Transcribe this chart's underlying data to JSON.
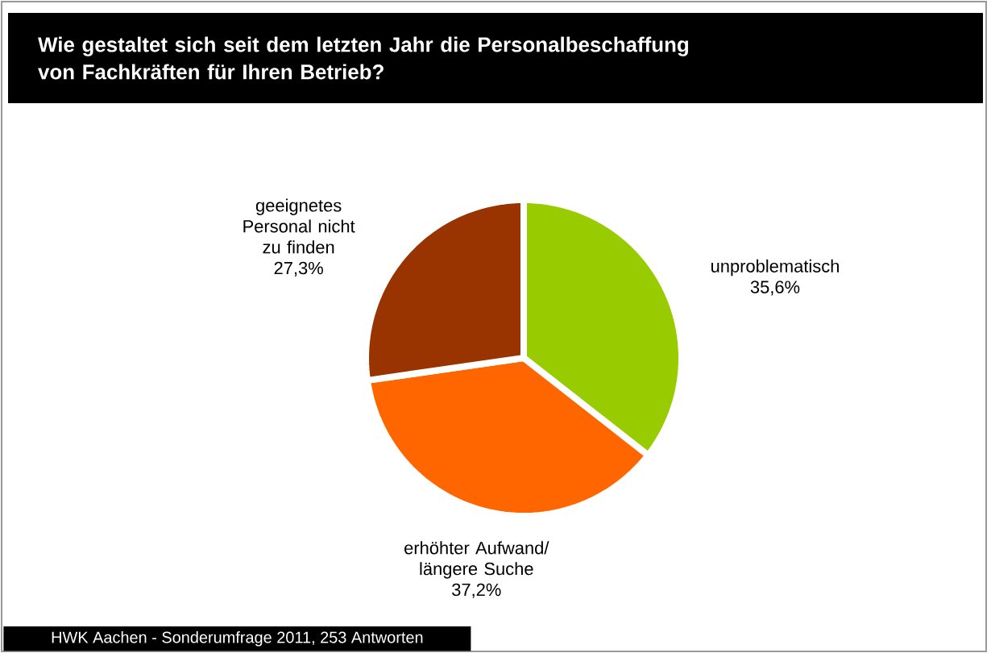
{
  "chart_data": {
    "type": "pie",
    "title": "Wie gestaltet sich seit dem letzten Jahr die Personalbeschaffung von Fachkräften für Ihren Betrieb?",
    "categories": [
      "unproblematisch",
      "erhöhter Aufwand/ längere Suche",
      "geeignetes Personal nicht zu finden"
    ],
    "values": [
      35.6,
      37.2,
      27.3
    ],
    "value_labels": [
      "35,6%",
      "37,2%",
      "27,3%"
    ],
    "colors": [
      "#99cc00",
      "#ff6600",
      "#993300"
    ],
    "annotations": [
      "HWK Aachen - Sonderumfrage  2011, 253 Antworten"
    ]
  }
}
